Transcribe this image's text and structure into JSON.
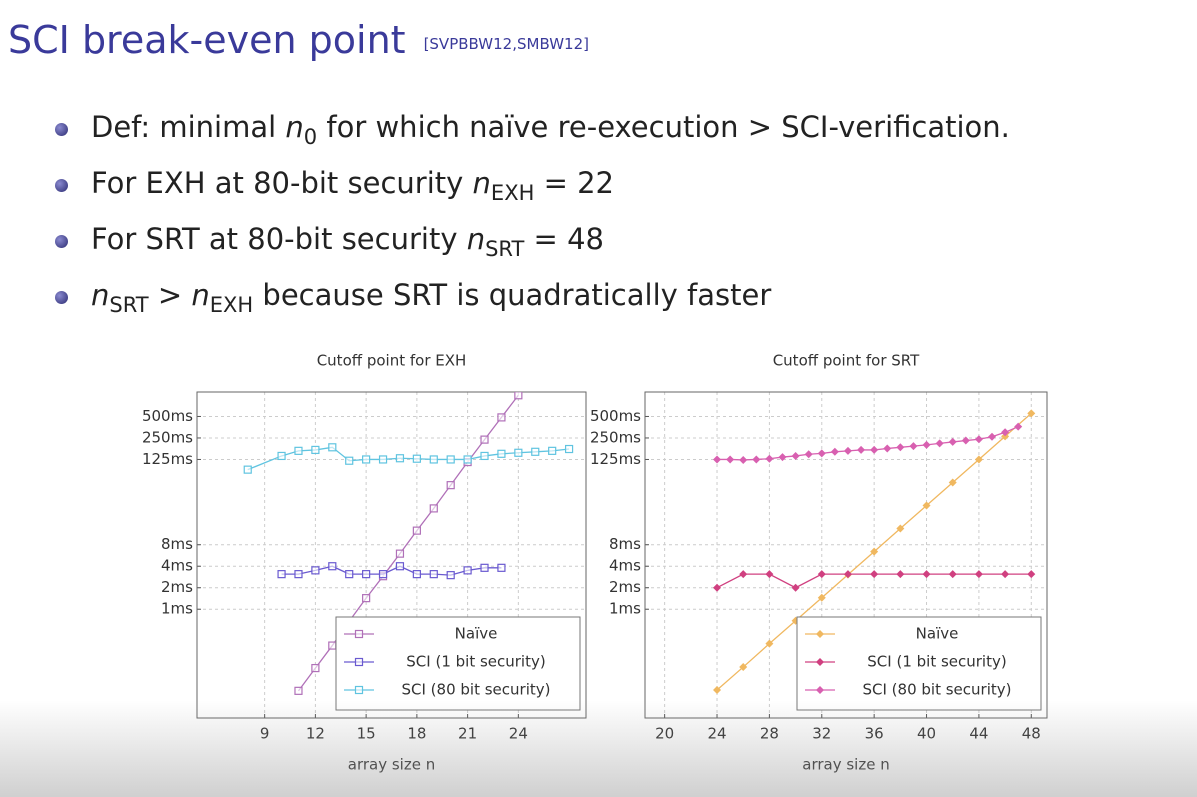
{
  "slide": {
    "title": "SCI break-even point",
    "citation": "[SVPBBW12,SMBW12]",
    "bullets": [
      [
        "Def: minimal ",
        {
          "base": "n",
          "sub": "0"
        },
        " for which naïve re-execution > SCI-verification."
      ],
      [
        "For EXH  at 80-bit security ",
        {
          "base": "n",
          "sub": "EXH"
        },
        " = 22"
      ],
      [
        "For SRT  at 80-bit security ",
        {
          "base": "n",
          "sub": "SRT"
        },
        " = 48"
      ],
      [
        {
          "base": "n",
          "sub": "SRT"
        },
        " > ",
        {
          "base": "n",
          "sub": "EXH"
        },
        " because SRT  is quadratically faster"
      ]
    ]
  },
  "chart_data": [
    {
      "type": "line",
      "title": "Cutoff point for EXH",
      "x_label": "array size n",
      "log_y": true,
      "grid": true,
      "legend": "lower right",
      "marker": "square",
      "xlim": [
        5,
        28
      ],
      "xticks": [
        9,
        12,
        15,
        18,
        21,
        24
      ],
      "ylim": [
        0.03,
        1100
      ],
      "yticks": [
        {
          "value": 1,
          "label": "1ms"
        },
        {
          "value": 2,
          "label": "2ms"
        },
        {
          "value": 4,
          "label": "4ms"
        },
        {
          "value": 8,
          "label": "8ms"
        },
        {
          "value": 125,
          "label": "125ms"
        },
        {
          "value": 250,
          "label": "250ms"
        },
        {
          "value": 500,
          "label": "500ms"
        }
      ],
      "series": [
        {
          "name": "Naïve",
          "color": "#b070b8",
          "x": [
            11,
            12,
            13,
            14,
            15,
            16,
            17,
            18,
            19,
            20,
            21,
            22,
            23,
            24
          ],
          "values": [
            0.072,
            0.15,
            0.31,
            0.68,
            1.43,
            2.9,
            6.0,
            12.6,
            25.8,
            54.6,
            115,
            237,
            485,
            990
          ]
        },
        {
          "name": "SCI (1 bit security)",
          "color": "#6a5ad0",
          "x": [
            10,
            11,
            12,
            13,
            14,
            15,
            16,
            17,
            18,
            19,
            20,
            21,
            22,
            23
          ],
          "values": [
            3.1,
            3.1,
            3.5,
            4.0,
            3.1,
            3.1,
            3.1,
            4.0,
            3.1,
            3.1,
            3.0,
            3.5,
            3.8,
            3.8
          ]
        },
        {
          "name": "SCI (80 bit security)",
          "color": "#60c4e0",
          "x": [
            8,
            10,
            11,
            12,
            13,
            14,
            15,
            16,
            17,
            18,
            19,
            20,
            21,
            22,
            23,
            24,
            25,
            26,
            27
          ],
          "values": [
            90,
            140,
            165,
            170,
            185,
            120,
            125,
            125,
            130,
            128,
            125,
            125,
            125,
            140,
            150,
            155,
            160,
            165,
            175
          ]
        }
      ]
    },
    {
      "type": "line",
      "title": "Cutoff point for SRT",
      "x_label": "array size n",
      "log_y": true,
      "grid": true,
      "legend": "lower right",
      "marker": "diamond",
      "xlim": [
        18.5,
        49.2
      ],
      "xticks": [
        20,
        24,
        28,
        32,
        36,
        40,
        44,
        48
      ],
      "ylim": [
        0.03,
        1100
      ],
      "yticks": [
        {
          "value": 1,
          "label": "1ms"
        },
        {
          "value": 2,
          "label": "2ms"
        },
        {
          "value": 4,
          "label": "4ms"
        },
        {
          "value": 8,
          "label": "8ms"
        },
        {
          "value": 125,
          "label": "125ms"
        },
        {
          "value": 250,
          "label": "250ms"
        },
        {
          "value": 500,
          "label": "500ms"
        }
      ],
      "series": [
        {
          "name": "Naïve",
          "color": "#f0b860",
          "x": [
            24,
            26,
            28,
            30,
            32,
            34,
            36,
            38,
            40,
            42,
            44,
            46,
            48
          ],
          "values": [
            0.074,
            0.155,
            0.33,
            0.69,
            1.45,
            3.05,
            6.4,
            13.5,
            28.3,
            59.5,
            125,
            263,
            553
          ]
        },
        {
          "name": "SCI (1 bit security)",
          "color": "#d04080",
          "x": [
            24,
            26,
            28,
            30,
            32,
            34,
            36,
            38,
            40,
            42,
            44,
            46,
            48
          ],
          "values": [
            2,
            3.1,
            3.1,
            2,
            3.1,
            3.1,
            3.1,
            3.1,
            3.1,
            3.1,
            3.1,
            3.1,
            3.1
          ]
        },
        {
          "name": "SCI (80 bit security)",
          "color": "#d860b0",
          "x": [
            24,
            25,
            26,
            27,
            28,
            29,
            30,
            31,
            32,
            33,
            34,
            35,
            36,
            37,
            38,
            39,
            40,
            41,
            42,
            43,
            44,
            45,
            46,
            47
          ],
          "values": [
            125,
            125,
            123,
            125,
            128,
            135,
            140,
            148,
            152,
            160,
            165,
            170,
            170,
            178,
            185,
            192,
            200,
            210,
            220,
            230,
            240,
            260,
            300,
            360
          ]
        }
      ]
    }
  ]
}
